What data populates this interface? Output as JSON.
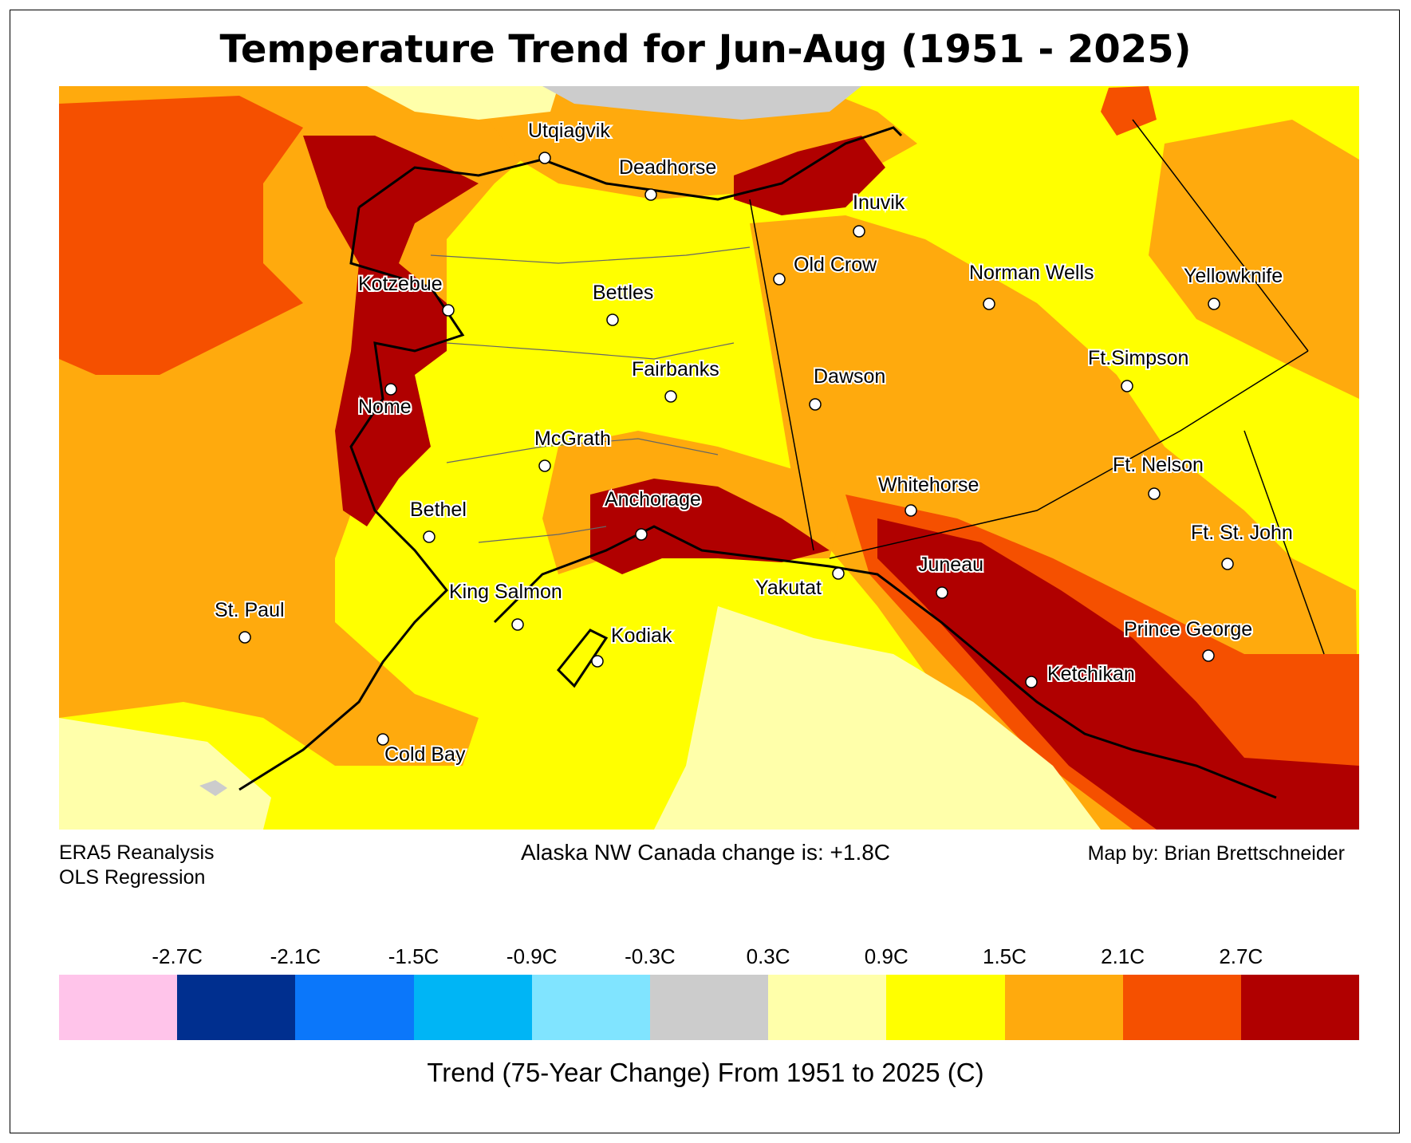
{
  "title": "Temperature Trend for Jun-Aug (1951 - 2025)",
  "footer": {
    "source_line1": "ERA5 Reanalysis",
    "source_line2": "OLS Regression",
    "summary": "Alaska NW Canada change is: +1.8C",
    "credit": "Map by: Brian Brettschneider"
  },
  "colorbar": {
    "caption": "Trend (75-Year Change) From 1951 to 2025 (C)",
    "ticks": [
      "-2.7C",
      "-2.1C",
      "-1.5C",
      "-0.9C",
      "-0.3C",
      "0.3C",
      "0.9C",
      "1.5C",
      "2.1C",
      "2.7C"
    ],
    "colors": [
      "#ffc4ea",
      "#002f8f",
      "#0b77fa",
      "#00b5f5",
      "#80e4ff",
      "#cccccc",
      "#ffffaa",
      "#ffff00",
      "#ffaa0d",
      "#f55000",
      "#b00000"
    ]
  },
  "cities": [
    {
      "name": "Utqiaġvik"
    },
    {
      "name": "Deadhorse"
    },
    {
      "name": "Inuvik"
    },
    {
      "name": "Old Crow"
    },
    {
      "name": "Norman Wells"
    },
    {
      "name": "Yellowknife"
    },
    {
      "name": "Kotzebue"
    },
    {
      "name": "Bettles"
    },
    {
      "name": "Fairbanks"
    },
    {
      "name": "Dawson"
    },
    {
      "name": "Ft.Simpson"
    },
    {
      "name": "Nome"
    },
    {
      "name": "McGrath"
    },
    {
      "name": "Whitehorse"
    },
    {
      "name": "Ft. Nelson"
    },
    {
      "name": "Anchorage"
    },
    {
      "name": "Bethel"
    },
    {
      "name": "Ft. St. John"
    },
    {
      "name": "Juneau"
    },
    {
      "name": "Yakutat"
    },
    {
      "name": "King Salmon"
    },
    {
      "name": "St. Paul"
    },
    {
      "name": "Kodiak"
    },
    {
      "name": "Prince George"
    },
    {
      "name": "Ketchikan"
    },
    {
      "name": "Cold Bay"
    }
  ]
}
